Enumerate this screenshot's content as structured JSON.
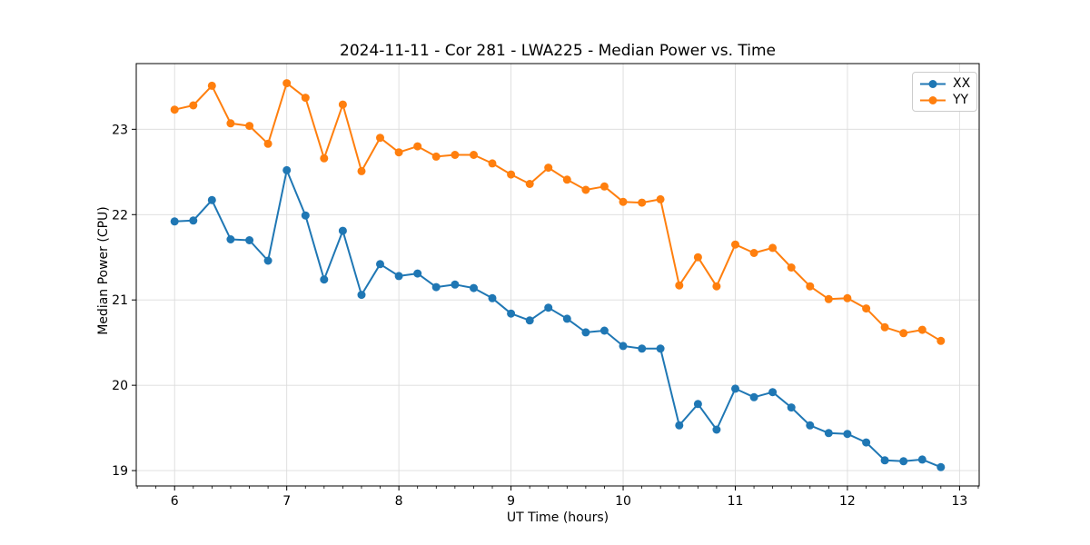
{
  "chart_data": {
    "type": "line",
    "title": "2024-11-11 - Cor 281 - LWA225 - Median Power vs. Time",
    "xlabel": "UT Time (hours)",
    "ylabel": "Median Power (CPU)",
    "xlim": [
      5.658,
      13.175
    ],
    "ylim": [
      18.82,
      23.77
    ],
    "x_major_ticks": [
      6,
      7,
      8,
      9,
      10,
      11,
      12,
      13
    ],
    "y_major_ticks": [
      19,
      20,
      21,
      22,
      23
    ],
    "x_minor_step": 0.16667,
    "grid": true,
    "legend_position": "upper right",
    "colors": {
      "grid": "#dcdcdc",
      "axis": "#000000",
      "background": "#ffffff"
    },
    "x": [
      6.0,
      6.167,
      6.333,
      6.5,
      6.667,
      6.833,
      7.0,
      7.167,
      7.333,
      7.5,
      7.667,
      7.833,
      8.0,
      8.167,
      8.333,
      8.5,
      8.667,
      8.833,
      9.0,
      9.167,
      9.333,
      9.5,
      9.667,
      9.833,
      10.0,
      10.167,
      10.333,
      10.5,
      10.667,
      10.833,
      11.0,
      11.167,
      11.333,
      11.5,
      11.667,
      11.833,
      12.0,
      12.167,
      12.333,
      12.5,
      12.667,
      12.833
    ],
    "series": [
      {
        "name": "XX",
        "color": "#1f77b4",
        "values": [
          21.92,
          21.93,
          22.17,
          21.71,
          21.7,
          21.46,
          22.52,
          21.99,
          21.24,
          21.81,
          21.06,
          21.42,
          21.28,
          21.31,
          21.15,
          21.18,
          21.14,
          21.02,
          20.84,
          20.76,
          20.91,
          20.78,
          20.62,
          20.64,
          20.46,
          20.43,
          20.43,
          19.53,
          19.78,
          19.48,
          19.96,
          19.86,
          19.92,
          19.74,
          19.53,
          19.44,
          19.43,
          19.33,
          19.12,
          19.11,
          19.13,
          19.04
        ]
      },
      {
        "name": "YY",
        "color": "#ff7f0e",
        "values": [
          23.23,
          23.28,
          23.51,
          23.07,
          23.04,
          22.83,
          23.54,
          23.37,
          22.66,
          23.29,
          22.51,
          22.9,
          22.73,
          22.8,
          22.68,
          22.7,
          22.7,
          22.6,
          22.47,
          22.36,
          22.55,
          22.41,
          22.29,
          22.33,
          22.15,
          22.14,
          22.18,
          21.17,
          21.5,
          21.16,
          21.65,
          21.55,
          21.61,
          21.38,
          21.16,
          21.01,
          21.02,
          20.9,
          20.68,
          20.61,
          20.65,
          20.52
        ]
      }
    ]
  }
}
